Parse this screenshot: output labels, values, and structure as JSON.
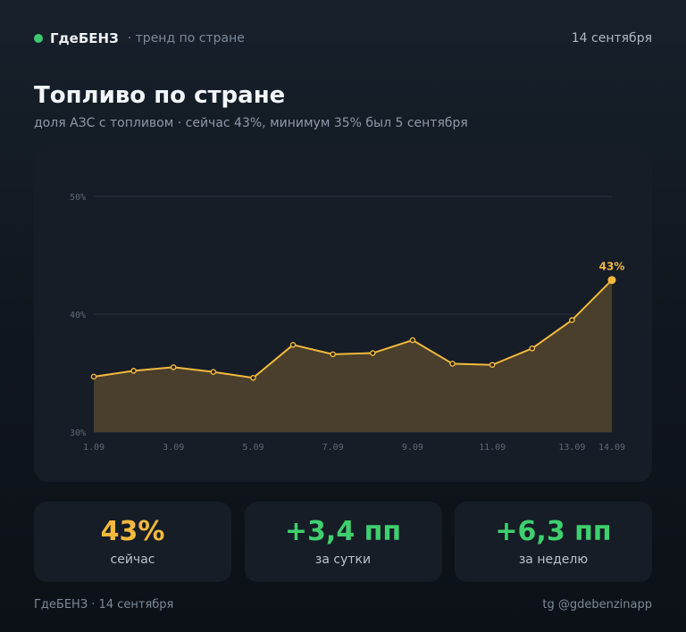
{
  "header": {
    "brand": "ГдеБЕНЗ",
    "subtitle": "· тренд по стране",
    "date": "14 сентября"
  },
  "page": {
    "title": "Топливо по стране",
    "subtitle": "доля АЗС с топливом · сейчас 43%, минимум 35% был 5 сентября"
  },
  "colors": {
    "accent": "#f3b93d",
    "positive": "#3fcf6e",
    "brand_dot": "#3ec96f"
  },
  "chart_data": {
    "type": "area",
    "x": [
      "1.09",
      "2.09",
      "3.09",
      "4.09",
      "5.09",
      "6.09",
      "7.09",
      "8.09",
      "9.09",
      "10.09",
      "11.09",
      "12.09",
      "13.09",
      "14.09"
    ],
    "x_tick_labels": [
      "1.09",
      "3.09",
      "5.09",
      "7.09",
      "9.09",
      "11.09",
      "13.09",
      "14.09"
    ],
    "values": [
      34.7,
      35.2,
      35.5,
      35.1,
      34.6,
      37.4,
      36.6,
      36.7,
      37.8,
      35.8,
      35.7,
      37.1,
      39.5,
      42.9
    ],
    "ylim": [
      30,
      50
    ],
    "y_ticks": [
      "30%",
      "40%",
      "50%"
    ],
    "last_label": "43%",
    "grid": true
  },
  "stats": [
    {
      "value": "43%",
      "label": "сейчас"
    },
    {
      "value": "+3,4 пп",
      "label": "за сутки"
    },
    {
      "value": "+6,3 пп",
      "label": "за неделю"
    }
  ],
  "footer": {
    "left": "ГдеБЕНЗ · 14 сентября",
    "right": "tg @gdebenzinapp"
  }
}
